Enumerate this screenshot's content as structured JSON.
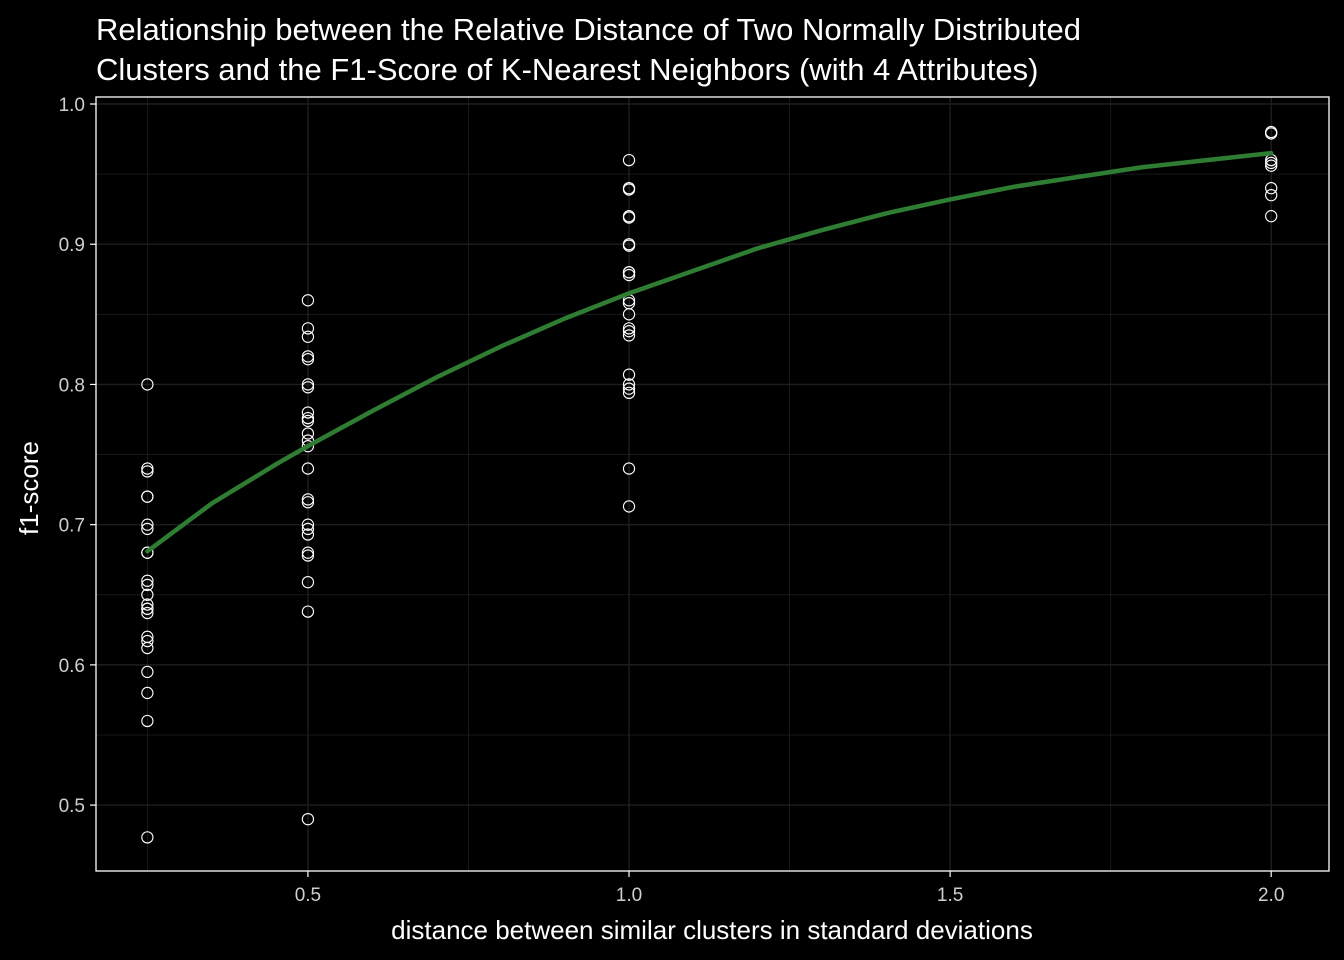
{
  "chart_data": {
    "type": "scatter",
    "title": "Relationship between the Relative Distance of Two Normally Distributed Clusters and the F1-Score of K-Nearest Neighbors (with 4 Attributes)",
    "title_lines": [
      "Relationship between the Relative Distance of Two Normally Distributed",
      "Clusters and the F1-Score of K-Nearest Neighbors (with 4 Attributes)"
    ],
    "xlabel": "distance between similar clusters in standard deviations",
    "ylabel": "f1-score",
    "xlim": [
      0.17,
      2.09
    ],
    "ylim": [
      0.453,
      1.005
    ],
    "x_ticks": [
      0.5,
      1.0,
      1.5,
      2.0
    ],
    "x_tick_labels": [
      "0.5",
      "1.0",
      "1.5",
      "2.0"
    ],
    "y_ticks": [
      0.5,
      0.6,
      0.7,
      0.8,
      0.9,
      1.0
    ],
    "y_tick_labels": [
      "0.5",
      "0.6",
      "0.7",
      "0.8",
      "0.9",
      "1.0"
    ],
    "grid": true,
    "colors": {
      "background": "#000000",
      "grid": "#1e1e1e",
      "points": "#ffffff",
      "trend": "#2e7d32",
      "axis_line": "#ffffff",
      "tick_text": "#cfcfcf"
    },
    "series": [
      {
        "type": "scatter",
        "x": [
          0.25,
          0.25,
          0.25,
          0.25,
          0.25,
          0.25,
          0.25,
          0.25,
          0.25,
          0.25,
          0.25,
          0.25,
          0.25,
          0.25,
          0.25,
          0.25,
          0.25,
          0.25,
          0.25,
          0.25,
          0.25,
          0.25,
          0.25,
          0.5,
          0.5,
          0.5,
          0.5,
          0.5,
          0.5,
          0.5,
          0.5,
          0.5,
          0.5,
          0.5,
          0.5,
          0.5,
          0.5,
          0.5,
          0.5,
          0.5,
          0.5,
          0.5,
          0.5,
          0.5,
          0.5,
          0.5,
          0.5,
          1.0,
          1.0,
          1.0,
          1.0,
          1.0,
          1.0,
          1.0,
          1.0,
          1.0,
          1.0,
          1.0,
          1.0,
          1.0,
          1.0,
          1.0,
          1.0,
          1.0,
          1.0,
          1.0,
          1.0,
          1.0,
          1.0,
          2.0,
          2.0,
          2.0,
          2.0,
          2.0,
          2.0,
          2.0,
          2.0
        ],
        "y": [
          0.8,
          0.74,
          0.738,
          0.72,
          0.7,
          0.697,
          0.68,
          0.66,
          0.657,
          0.65,
          0.643,
          0.64,
          0.637,
          0.62,
          0.617,
          0.612,
          0.595,
          0.58,
          0.56,
          0.477,
          0.72,
          0.68,
          0.64,
          0.86,
          0.84,
          0.834,
          0.82,
          0.818,
          0.8,
          0.798,
          0.78,
          0.776,
          0.774,
          0.765,
          0.76,
          0.756,
          0.74,
          0.718,
          0.716,
          0.7,
          0.697,
          0.693,
          0.68,
          0.678,
          0.659,
          0.638,
          0.49,
          0.96,
          0.94,
          0.939,
          0.92,
          0.919,
          0.9,
          0.899,
          0.88,
          0.878,
          0.86,
          0.858,
          0.85,
          0.84,
          0.838,
          0.835,
          0.807,
          0.8,
          0.797,
          0.794,
          0.74,
          0.713,
          0.88,
          0.98,
          0.979,
          0.96,
          0.958,
          0.956,
          0.94,
          0.935,
          0.92
        ]
      },
      {
        "type": "line",
        "x": [
          0.25,
          0.35,
          0.45,
          0.5,
          0.6,
          0.7,
          0.8,
          0.9,
          1.0,
          1.1,
          1.2,
          1.3,
          1.4,
          1.5,
          1.6,
          1.7,
          1.8,
          1.9,
          2.0
        ],
        "y": [
          0.681,
          0.715,
          0.743,
          0.756,
          0.781,
          0.805,
          0.827,
          0.847,
          0.865,
          0.881,
          0.897,
          0.91,
          0.922,
          0.932,
          0.941,
          0.948,
          0.955,
          0.96,
          0.965
        ]
      }
    ]
  }
}
